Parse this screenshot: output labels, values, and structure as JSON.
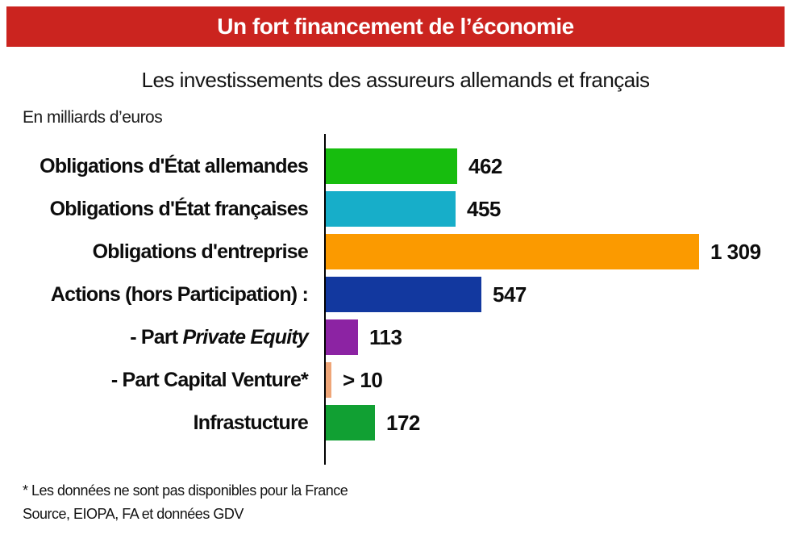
{
  "banner": {
    "label": "Un fort financement de l’économie",
    "bg_color": "#cb241f",
    "text_color": "#ffffff"
  },
  "chart_data": {
    "type": "bar",
    "orientation": "horizontal",
    "title": "Les investissements des assureurs allemands et français",
    "unit_label": "En milliards d’euros",
    "xlabel": "",
    "ylabel": "",
    "xlim": [
      0,
      1309
    ],
    "grid": false,
    "legend": false,
    "categories": [
      "Obligations d'État allemandes",
      "Obligations d'État françaises",
      "Obligations d'entreprise",
      "Actions (hors Participation) :",
      "- Part Private Equity",
      "- Part Capital Venture*",
      "Infrastucture"
    ],
    "values": [
      462,
      455,
      1309,
      547,
      113,
      10,
      172
    ],
    "value_labels": [
      "462",
      "455",
      "1 309",
      "547",
      "113",
      "> 10",
      "172"
    ],
    "bar_colors": [
      "#17bd0e",
      "#17aec9",
      "#fb9a00",
      "#12389f",
      "#8c23a3",
      "#efa678",
      "#11a033"
    ],
    "italic_substrings": {
      "4": "Private Equity"
    },
    "footnotes": [
      "* Les données ne sont pas disponibles pour la France",
      "Source, EIOPA, FA et données GDV"
    ]
  }
}
